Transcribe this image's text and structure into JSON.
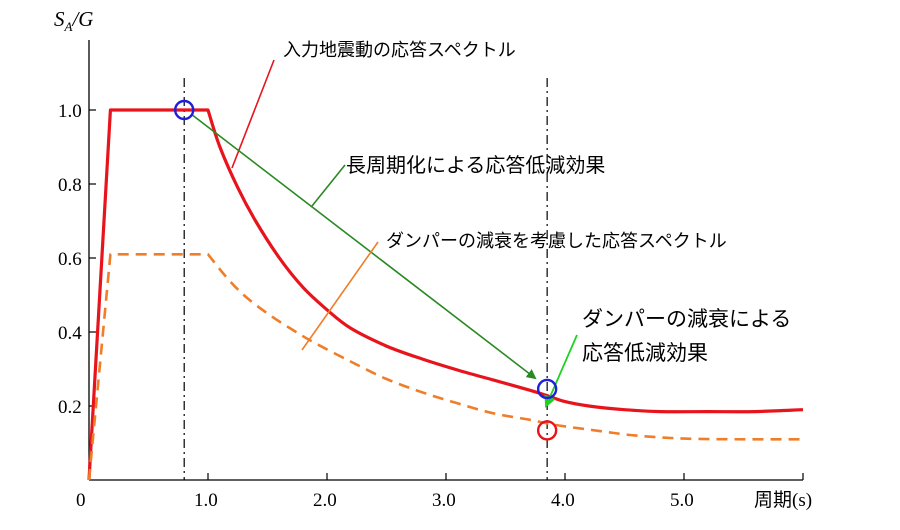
{
  "chart_data": {
    "type": "line",
    "ylabel_parts": {
      "main": "S",
      "sub": "A",
      "rest": "/G"
    },
    "xlabel": "周期(s)",
    "origin_label": "0",
    "x_ticks": [
      1.0,
      2.0,
      3.0,
      4.0,
      5.0
    ],
    "x_tick_labels": [
      "1.0",
      "2.0",
      "3.0",
      "4.0",
      "5.0"
    ],
    "y_ticks": [
      0.2,
      0.4,
      0.6,
      0.8,
      1.0
    ],
    "y_tick_labels": [
      "0.2",
      "0.4",
      "0.6",
      "0.8",
      "1.0"
    ],
    "xlim": [
      0,
      6.0
    ],
    "ylim": [
      0,
      1.2
    ],
    "reference_periods": [
      0.8,
      3.85
    ],
    "series": [
      {
        "key": "input",
        "color": "#e8141c",
        "style": "solid",
        "x": [
          0,
          0.18,
          1.0,
          1.1,
          1.25,
          1.4,
          1.6,
          1.8,
          2.0,
          2.2,
          2.5,
          2.8,
          3.1,
          3.4,
          3.7,
          3.85,
          4.0,
          4.2,
          4.5,
          4.8,
          5.2,
          5.6,
          6.0
        ],
        "y": [
          0,
          1.0,
          1.0,
          0.9,
          0.79,
          0.7,
          0.6,
          0.52,
          0.46,
          0.41,
          0.362,
          0.327,
          0.297,
          0.27,
          0.243,
          0.228,
          0.212,
          0.2,
          0.19,
          0.185,
          0.185,
          0.185,
          0.19
        ]
      },
      {
        "key": "damped",
        "color": "#f07d28",
        "style": "dashed",
        "x": [
          0,
          0.18,
          1.0,
          1.15,
          1.3,
          1.5,
          1.7,
          1.9,
          2.2,
          2.5,
          2.8,
          3.1,
          3.4,
          3.7,
          3.85,
          4.0,
          4.3,
          4.6,
          5.0,
          5.5,
          6.0
        ],
        "y": [
          0,
          0.61,
          0.61,
          0.55,
          0.5,
          0.45,
          0.408,
          0.37,
          0.32,
          0.273,
          0.237,
          0.207,
          0.18,
          0.163,
          0.153,
          0.145,
          0.132,
          0.12,
          0.112,
          0.11,
          0.11
        ]
      }
    ],
    "points": [
      {
        "key": "p1",
        "x": 0.8,
        "y": 1.0,
        "color": "#1e1edc"
      },
      {
        "key": "p2",
        "x": 3.85,
        "y": 0.246,
        "color": "#1e1edc"
      },
      {
        "key": "p3",
        "x": 3.85,
        "y": 0.134,
        "color": "#e8141c"
      }
    ],
    "annotations": [
      {
        "key": "a1",
        "text": "入力地震動の応答スペクトル",
        "color": "#e8141c"
      },
      {
        "key": "a2",
        "text": "長周期化による応答低減効果",
        "color": "#2a8a22"
      },
      {
        "key": "a3",
        "text": "ダンパーの減衰を考慮した応答スペクトル",
        "color": "#f07d28"
      },
      {
        "key": "a4",
        "lines": [
          "ダンパーの減衰による",
          "応答低減効果"
        ],
        "color": "#21d121"
      }
    ]
  }
}
